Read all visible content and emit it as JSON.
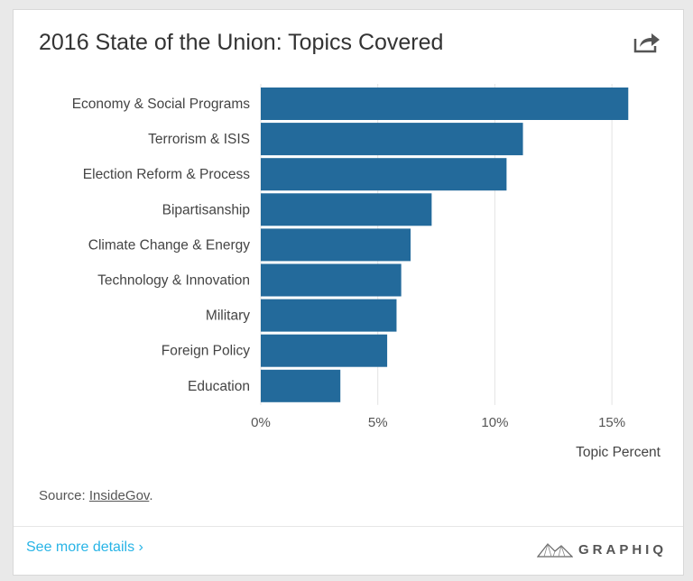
{
  "header": {
    "title": "2016 State of the Union: Topics Covered"
  },
  "icons": {
    "share": "share-icon",
    "logo": "graphiq-mountain-logo-icon"
  },
  "colors": {
    "bar": "#236a9b",
    "grid": "#e3e3e3",
    "link": "#28b4e6"
  },
  "chart_data": {
    "type": "bar",
    "orientation": "horizontal",
    "categories": [
      "Economy & Social Programs",
      "Terrorism & ISIS",
      "Election Reform & Process",
      "Bipartisanship",
      "Climate Change & Energy",
      "Technology & Innovation",
      "Military",
      "Foreign Policy",
      "Education"
    ],
    "values": [
      15.7,
      11.2,
      10.5,
      7.3,
      6.4,
      6.0,
      5.8,
      5.4,
      3.4
    ],
    "xlabel": "Topic Percent",
    "ylabel": "",
    "xlim": [
      0,
      17
    ],
    "xticks": [
      0,
      5,
      10,
      15
    ],
    "xtick_labels": [
      "0%",
      "5%",
      "10%",
      "15%"
    ],
    "grid": true
  },
  "source": {
    "prefix": "Source: ",
    "link_text": "InsideGov",
    "suffix": "."
  },
  "footer": {
    "see_more": "See more details ›",
    "brand": "GRAPHIQ"
  }
}
